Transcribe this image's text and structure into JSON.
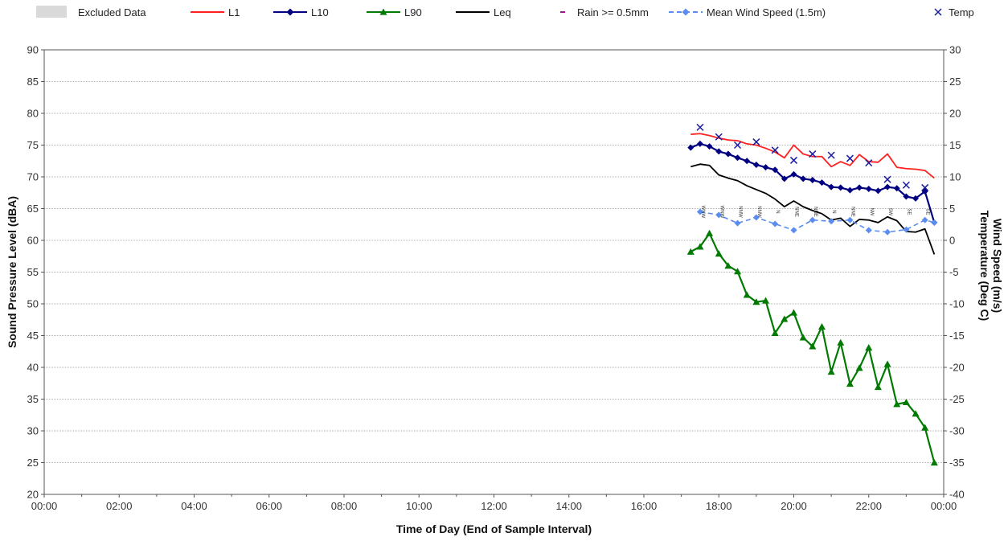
{
  "chart_data": {
    "type": "line",
    "xlabel": "Time of Day (End of Sample Interval)",
    "ylabel": "Sound Pressure Level (dBA)",
    "y2label_1": "Wind Speed (m/s)",
    "y2label_2": "Temperature (Deg C)",
    "x_ticks": [
      "00:00",
      "02:00",
      "04:00",
      "06:00",
      "08:00",
      "10:00",
      "12:00",
      "14:00",
      "16:00",
      "18:00",
      "20:00",
      "22:00",
      "00:00"
    ],
    "x_range_hours": [
      0,
      24
    ],
    "ylim": [
      20,
      90
    ],
    "y_ticks": [
      20,
      25,
      30,
      35,
      40,
      45,
      50,
      55,
      60,
      65,
      70,
      75,
      80,
      85,
      90
    ],
    "y2lim": [
      -40,
      30
    ],
    "y2_ticks": [
      -40,
      -35,
      -30,
      -25,
      -20,
      -15,
      -10,
      -5,
      0,
      5,
      10,
      15,
      20,
      25,
      30
    ],
    "grid": true,
    "legend_position": "top",
    "legend": [
      {
        "label": "Excluded Data",
        "key": "excluded",
        "color": "#d9d9d9"
      },
      {
        "label": "L1",
        "key": "L1",
        "color": "#ff2020"
      },
      {
        "label": "L10",
        "key": "L10",
        "color": "#000080"
      },
      {
        "label": "L90",
        "key": "L90",
        "color": "#007a00"
      },
      {
        "label": "Leq",
        "key": "Leq",
        "color": "#000000"
      },
      {
        "label": "Rain >= 0.5mm",
        "key": "rain",
        "color": "#a0148c"
      },
      {
        "label": "Mean Wind Speed (1.5m)",
        "key": "wind",
        "color": "#5b8def"
      },
      {
        "label": "Temp",
        "key": "temp",
        "color": "#1a1aa0"
      }
    ],
    "series_spl": {
      "x": [
        17.25,
        17.5,
        17.75,
        18.0,
        18.25,
        18.5,
        18.75,
        19.0,
        19.25,
        19.5,
        19.75,
        20.0,
        20.25,
        20.5,
        20.75,
        21.0,
        21.25,
        21.5,
        21.75,
        22.0,
        22.25,
        22.5,
        22.75,
        23.0,
        23.25,
        23.5,
        23.75
      ],
      "L1": [
        76.7,
        76.8,
        76.5,
        76.1,
        75.8,
        75.7,
        75.2,
        75.0,
        74.5,
        73.9,
        73.0,
        75.0,
        73.6,
        73.2,
        73.2,
        71.6,
        72.4,
        71.8,
        73.5,
        72.4,
        72.3,
        73.6,
        71.5,
        71.3,
        71.2,
        71.0,
        69.8
      ],
      "L10": [
        74.6,
        75.2,
        74.8,
        74.0,
        73.6,
        73.0,
        72.5,
        71.9,
        71.5,
        71.1,
        69.7,
        70.4,
        69.7,
        69.5,
        69.1,
        68.4,
        68.3,
        67.9,
        68.3,
        68.1,
        67.8,
        68.4,
        68.2,
        66.9,
        66.6,
        67.7,
        62.8
      ],
      "L90": [
        58.2,
        59.0,
        61.1,
        57.9,
        56.0,
        55.1,
        51.4,
        50.3,
        50.5,
        45.4,
        47.6,
        48.6,
        44.7,
        43.3,
        46.4,
        39.3,
        43.9,
        37.4,
        39.9,
        43.1,
        36.9,
        40.5,
        34.2,
        34.5,
        32.7,
        30.5,
        25.0
      ],
      "Leq": [
        71.6,
        72.0,
        71.8,
        70.3,
        69.8,
        69.4,
        68.6,
        68.0,
        67.4,
        66.5,
        65.3,
        66.2,
        65.3,
        64.7,
        64.2,
        63.2,
        63.5,
        62.2,
        63.3,
        63.2,
        62.8,
        63.7,
        63.1,
        61.4,
        61.3,
        61.8,
        57.8
      ]
    },
    "series_wind": {
      "x": [
        17.5,
        18.0,
        18.5,
        19.0,
        19.5,
        20.0,
        20.5,
        21.0,
        21.5,
        22.0,
        22.5,
        23.0,
        23.5,
        23.75
      ],
      "values": [
        4.5,
        4.0,
        2.7,
        3.6,
        2.6,
        1.6,
        3.2,
        3.0,
        3.2,
        1.6,
        1.3,
        1.7,
        3.2,
        2.8
      ]
    },
    "series_temp": {
      "x": [
        17.5,
        18.0,
        18.5,
        19.0,
        19.5,
        20.0,
        20.5,
        21.0,
        21.5,
        22.0,
        22.5,
        23.0,
        23.5
      ],
      "values": [
        17.8,
        16.3,
        15.0,
        15.5,
        14.2,
        12.6,
        13.6,
        13.4,
        12.9,
        12.2,
        9.6,
        8.7,
        8.3
      ]
    },
    "wind_direction_labels": [
      {
        "x": 17.5,
        "text": "WNW"
      },
      {
        "x": 18.0,
        "text": "WNW"
      },
      {
        "x": 18.5,
        "text": "NNW"
      },
      {
        "x": 19.0,
        "text": "NNW"
      },
      {
        "x": 19.5,
        "text": "N"
      },
      {
        "x": 20.0,
        "text": "NNE"
      },
      {
        "x": 20.5,
        "text": "NNE"
      },
      {
        "x": 21.0,
        "text": "N"
      },
      {
        "x": 21.5,
        "text": "NNE"
      },
      {
        "x": 22.0,
        "text": "NW"
      },
      {
        "x": 22.5,
        "text": "SW"
      },
      {
        "x": 23.0,
        "text": "SE"
      },
      {
        "x": 23.5,
        "text": "SE"
      }
    ]
  }
}
